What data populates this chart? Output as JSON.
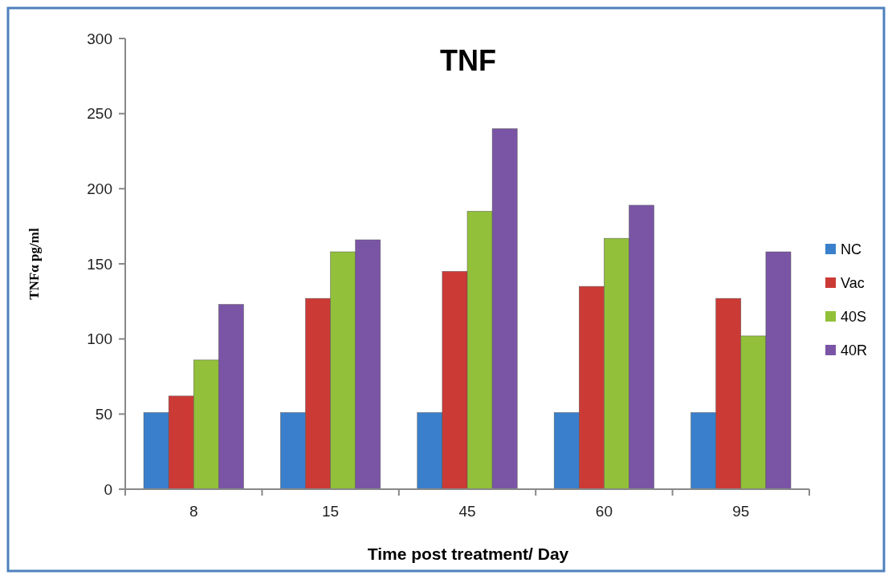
{
  "chart_data": {
    "type": "bar",
    "title": "TNF",
    "xlabel": "Time post treatment/ Day",
    "ylabel": "TNFα pg/ml",
    "categories": [
      "8",
      "15",
      "45",
      "60",
      "95"
    ],
    "series": [
      {
        "name": "NC",
        "color": "#3a7fcc",
        "values": [
          51,
          51,
          51,
          51,
          51
        ]
      },
      {
        "name": "Vac",
        "color": "#cc3a36",
        "values": [
          62,
          127,
          145,
          135,
          127
        ]
      },
      {
        "name": "40S",
        "color": "#92c03a",
        "values": [
          86,
          158,
          185,
          167,
          102
        ]
      },
      {
        "name": "40R",
        "color": "#7a55a6",
        "values": [
          123,
          166,
          240,
          189,
          158
        ]
      }
    ],
    "ylim": [
      0,
      300
    ],
    "yticks": [
      0,
      50,
      100,
      150,
      200,
      250,
      300
    ],
    "grid": false,
    "legend": "right"
  }
}
